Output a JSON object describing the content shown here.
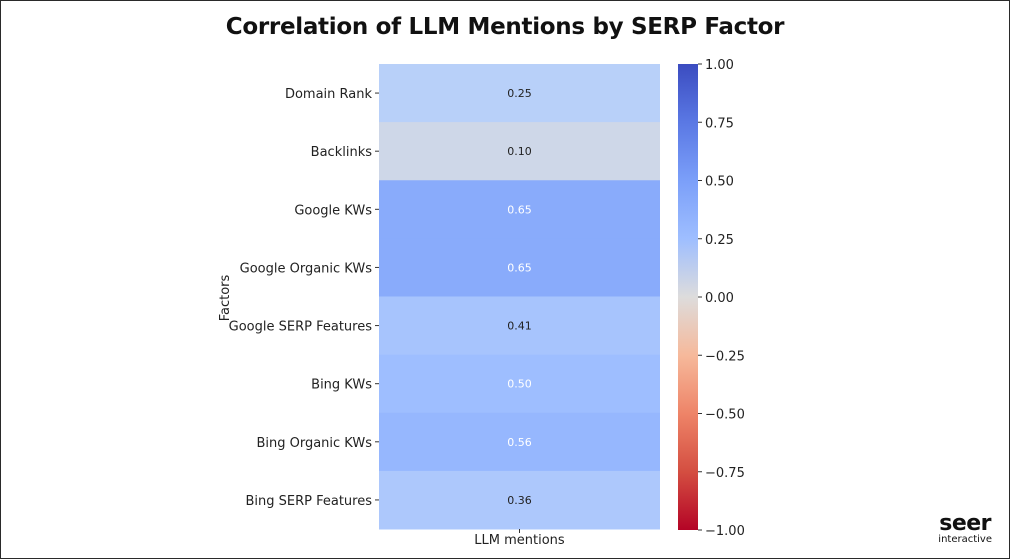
{
  "chart_data": {
    "type": "heatmap",
    "title": "Correlation of LLM Mentions by SERP Factor",
    "xlabel": "",
    "ylabel": "Factors",
    "x_categories": [
      "LLM mentions"
    ],
    "y_categories": [
      "Domain Rank",
      "Backlinks",
      "Google KWs",
      "Google Organic KWs",
      "Google SERP Features",
      "Bing KWs",
      "Bing Organic KWs",
      "Bing SERP Features"
    ],
    "values": [
      0.25,
      0.1,
      0.65,
      0.65,
      0.41,
      0.5,
      0.56,
      0.36
    ],
    "value_labels": [
      "0.25",
      "0.10",
      "0.65",
      "0.65",
      "0.41",
      "0.50",
      "0.56",
      "0.36"
    ],
    "colorbar": {
      "range": [
        -1.0,
        1.0
      ],
      "ticks": [
        1.0,
        0.75,
        0.5,
        0.25,
        0.0,
        -0.25,
        -0.5,
        -0.75,
        -1.0
      ],
      "tick_labels": [
        "1.00",
        "0.75",
        "0.50",
        "0.25",
        "0.00",
        "−0.25",
        "−0.50",
        "−0.75",
        "−1.00"
      ],
      "colormap": "coolwarm"
    },
    "x_axis_label": "LLM mentions"
  },
  "branding": {
    "logo_word": "seer",
    "logo_sub": "interactive"
  }
}
